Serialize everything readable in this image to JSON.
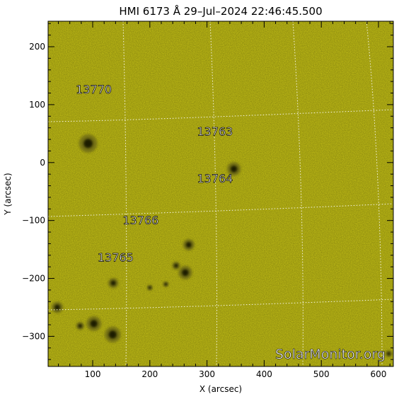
{
  "chart_data": {
    "type": "image",
    "title": "HMI 6173 Å 29–Jul–2024 22:46:45.500",
    "xlabel": "X (arcsec)",
    "ylabel": "Y (arcsec)",
    "xlim": [
      22,
      626
    ],
    "ylim": [
      -352,
      244
    ],
    "x_ticks": [
      100,
      200,
      300,
      400,
      500,
      600
    ],
    "y_ticks": [
      200,
      100,
      0,
      -100,
      -200,
      -300
    ],
    "y_tick_labels": [
      "200",
      "100",
      "0",
      "−100",
      "−200",
      "−300"
    ],
    "background_color": "#c8c416",
    "grid": "heliographic grid (dotted white)",
    "regions": [
      {
        "label": "13770",
        "x": 102,
        "y": 125
      },
      {
        "label": "13763",
        "x": 314,
        "y": 52
      },
      {
        "label": "13764",
        "x": 314,
        "y": -29
      },
      {
        "label": "13766",
        "x": 184,
        "y": -101
      },
      {
        "label": "13765",
        "x": 140,
        "y": -165
      }
    ],
    "spots": [
      {
        "x": 92,
        "y": 33,
        "r": 16
      },
      {
        "x": 347,
        "y": -11,
        "r": 12
      },
      {
        "x": 268,
        "y": -142,
        "r": 10
      },
      {
        "x": 262,
        "y": -190,
        "r": 12
      },
      {
        "x": 246,
        "y": -178,
        "r": 7
      },
      {
        "x": 135,
        "y": -297,
        "r": 14
      },
      {
        "x": 102,
        "y": -278,
        "r": 13
      },
      {
        "x": 38,
        "y": -250,
        "r": 10
      },
      {
        "x": 136,
        "y": -208,
        "r": 9
      },
      {
        "x": 78,
        "y": -282,
        "r": 7
      },
      {
        "x": 228,
        "y": -210,
        "r": 5
      },
      {
        "x": 200,
        "y": -216,
        "r": 5
      },
      {
        "x": 618,
        "y": -330,
        "r": 6
      }
    ]
  },
  "watermark": "SolarMonitor.org"
}
